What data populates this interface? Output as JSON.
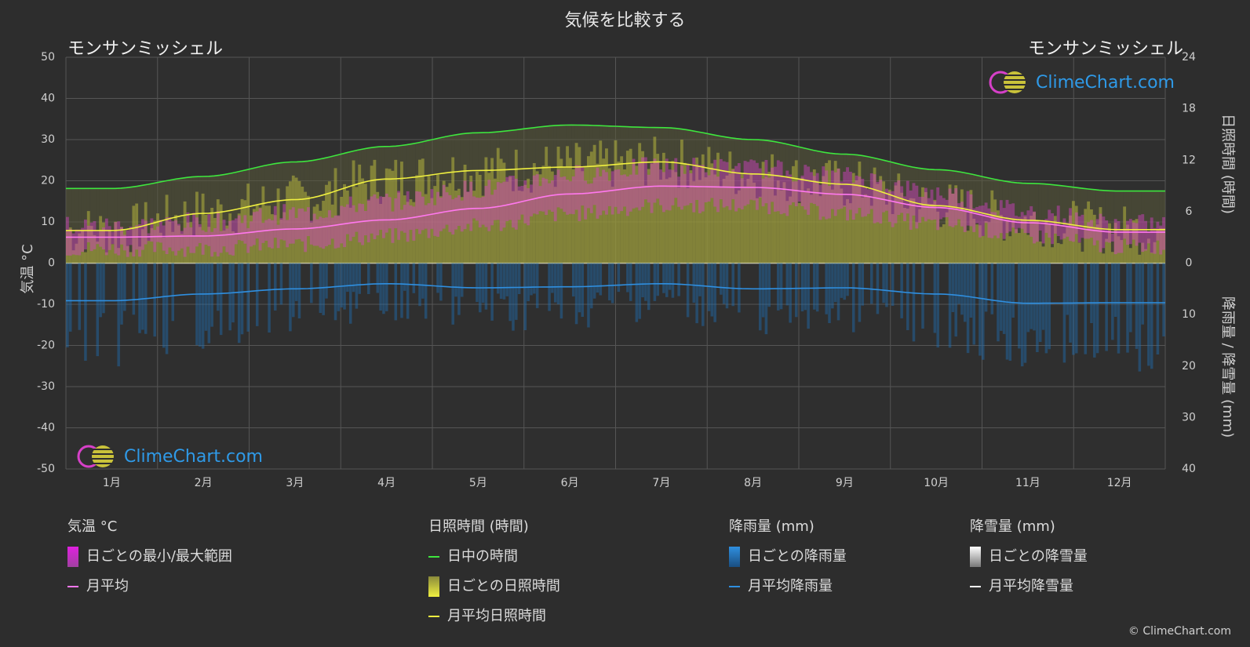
{
  "title": "気候を比較する",
  "location_left": "モンサンミッシェル",
  "location_right": "モンサンミッシェル",
  "brand": "ClimeChart.com",
  "copyright": "© ClimeChart.com",
  "axis": {
    "left_title": "気温 °C",
    "right_top_title": "日照時間 (時間)",
    "right_bottom_title": "降雨量 / 降雪量 (mm)"
  },
  "legend": {
    "temperature": {
      "title": "気温 °C",
      "range": "日ごとの最小/最大範囲",
      "mean": "月平均"
    },
    "sunshine": {
      "title": "日照時間 (時間)",
      "daylight": "日中の時間",
      "daily": "日ごとの日照時間",
      "mean": "月平均日照時間"
    },
    "rain": {
      "title": "降雨量 (mm)",
      "daily": "日ごとの降雨量",
      "mean": "月平均降雨量"
    },
    "snow": {
      "title": "降雪量 (mm)",
      "daily": "日ごとの降雪量",
      "mean": "月平均降雪量"
    }
  },
  "colors": {
    "background": "#2d2d2d",
    "grid": "#555555",
    "temp_range": "#d640c8",
    "temp_mean": "#ff78ee",
    "daylight": "#3ee63e",
    "sunshine_bar": "#b4b43c",
    "sunshine_mean": "#f0f040",
    "rain_bar": "#1e6eb4",
    "rain_mean": "#2f8fe0",
    "snow_mean": "#ffffff",
    "brand": "#2f9ae8"
  },
  "chart_data": {
    "type": "area",
    "categories": [
      "1月",
      "2月",
      "3月",
      "4月",
      "5月",
      "6月",
      "7月",
      "8月",
      "9月",
      "10月",
      "11月",
      "12月"
    ],
    "temp_axis": {
      "ylim": [
        -50,
        50
      ],
      "ticks": [
        50,
        40,
        30,
        20,
        10,
        0,
        -10,
        -20,
        -30,
        -40,
        -50
      ]
    },
    "sun_axis": {
      "ylim": [
        0,
        24
      ],
      "ticks": [
        24,
        18,
        12,
        6,
        0
      ]
    },
    "precip_axis": {
      "ylim": [
        0,
        40
      ],
      "ticks": [
        0,
        10,
        20,
        30,
        40
      ]
    },
    "series": [
      {
        "name": "日中の時間",
        "axis": "sun",
        "values": [
          8.7,
          10.1,
          11.8,
          13.6,
          15.2,
          16.1,
          15.8,
          14.4,
          12.7,
          10.9,
          9.3,
          8.4
        ]
      },
      {
        "name": "月平均日照時間",
        "axis": "sun",
        "values": [
          3.8,
          5.8,
          7.4,
          9.8,
          10.8,
          11.2,
          11.8,
          10.4,
          9.2,
          6.7,
          5.0,
          3.9
        ]
      },
      {
        "name": "月平均",
        "axis": "temp",
        "values": [
          6.3,
          6.6,
          8.3,
          10.5,
          13.3,
          16.8,
          18.7,
          18.4,
          16.7,
          13.5,
          9.8,
          7.5
        ]
      },
      {
        "name": "月平均降雨量",
        "axis": "precip",
        "values": [
          7.3,
          6.0,
          5.0,
          4.0,
          4.8,
          4.6,
          4.0,
          5.0,
          4.8,
          6.0,
          7.8,
          7.7
        ]
      },
      {
        "name": "月平均降雪量",
        "axis": "precip",
        "values": [
          0,
          0,
          0,
          0,
          0,
          0,
          0,
          0,
          0,
          0,
          0,
          0
        ]
      }
    ],
    "temp_range_max": [
      9.0,
      10.0,
      12.0,
      15.0,
      18.0,
      21.5,
      23.5,
      23.0,
      21.0,
      17.0,
      12.5,
      9.5
    ],
    "temp_range_min": [
      3.5,
      3.5,
      4.5,
      6.5,
      9.0,
      12.0,
      14.0,
      14.0,
      12.0,
      9.5,
      6.5,
      4.0
    ]
  }
}
